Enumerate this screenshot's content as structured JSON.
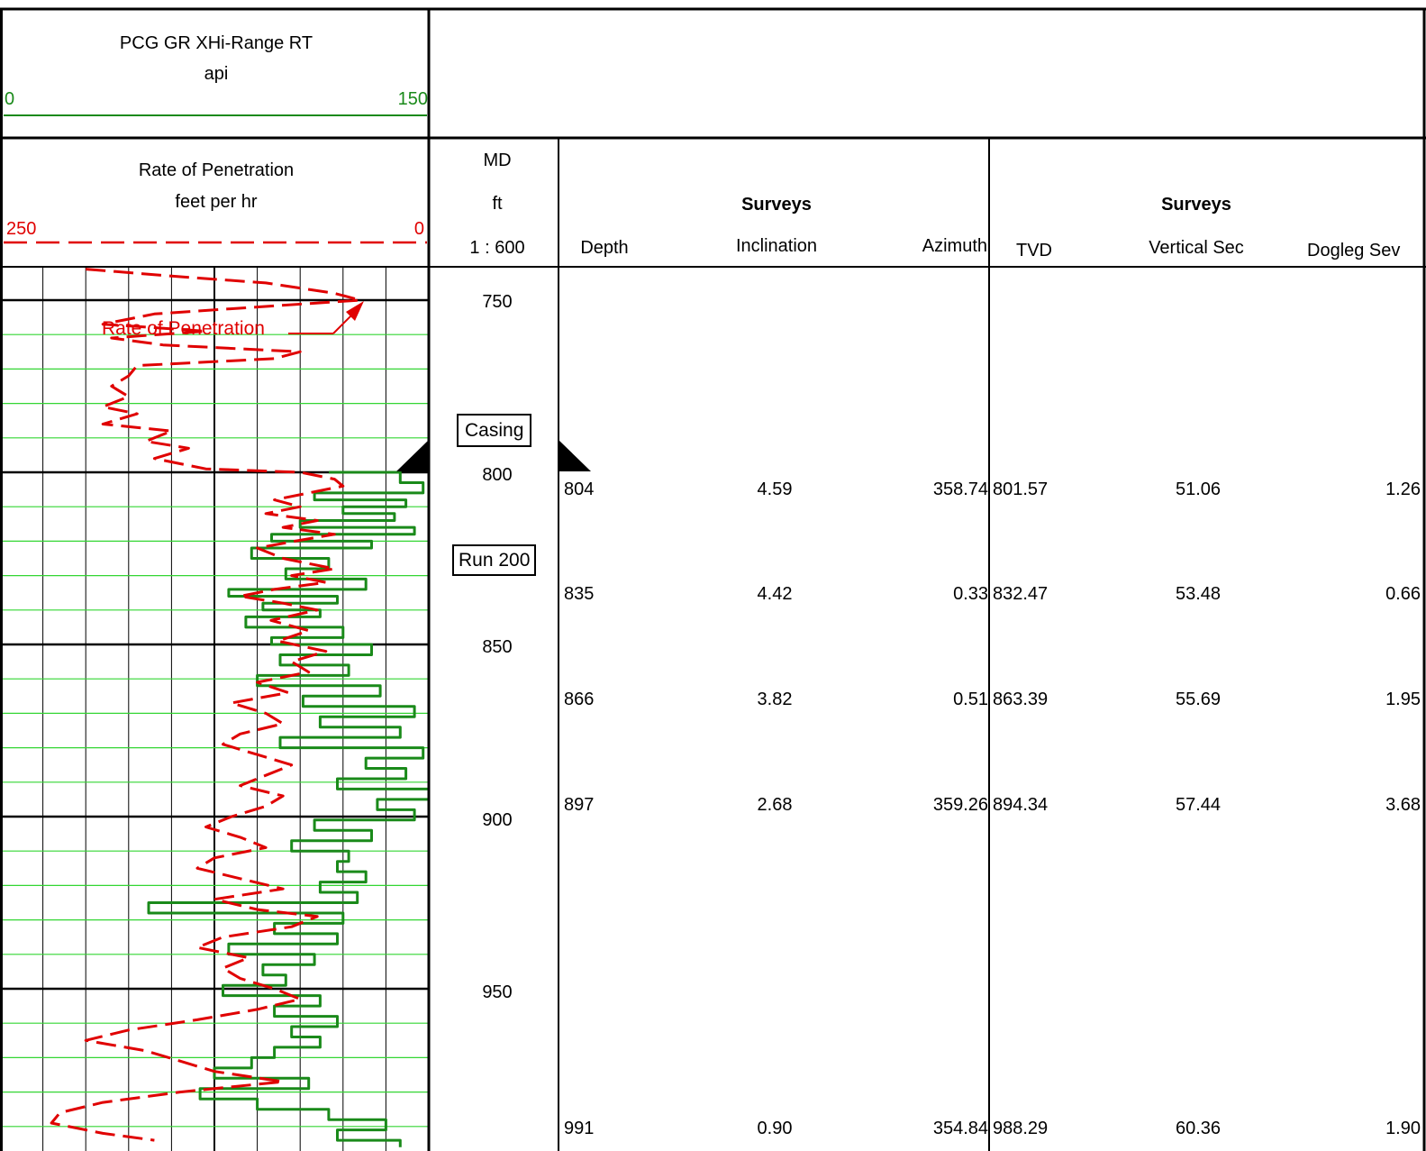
{
  "gr_header": {
    "title": "PCG GR XHi-Range RT",
    "unit": "api",
    "min": "0",
    "max": "150",
    "color": "#1a8a1a"
  },
  "rop_header": {
    "title": "Rate of Penetration",
    "unit": "feet per hr",
    "min": "250",
    "max": "0",
    "color": "#e00000"
  },
  "md_header": {
    "label": "MD",
    "unit": "ft",
    "scale": "1 : 600"
  },
  "surveys_left": {
    "title": "Surveys",
    "columns": [
      "Depth",
      "Inclination",
      "Azimuth"
    ]
  },
  "surveys_right": {
    "title": "Surveys",
    "columns": [
      "TVD",
      "Vertical Sec",
      "Dogleg Sev"
    ]
  },
  "depth_labels": [
    "750",
    "800",
    "850",
    "900",
    "950"
  ],
  "markers": {
    "casing": "Casing",
    "run": "Run 200"
  },
  "curve_label": "Rate of Penetration",
  "survey_rows": [
    {
      "depth": "804",
      "inclination": "4.59",
      "azimuth": "358.74",
      "tvd": "801.57",
      "vertical_sec": "51.06",
      "dogleg_sev": "1.26"
    },
    {
      "depth": "835",
      "inclination": "4.42",
      "azimuth": "0.33",
      "tvd": "832.47",
      "vertical_sec": "53.48",
      "dogleg_sev": "0.66"
    },
    {
      "depth": "866",
      "inclination": "3.82",
      "azimuth": "0.51",
      "tvd": "863.39",
      "vertical_sec": "55.69",
      "dogleg_sev": "1.95"
    },
    {
      "depth": "897",
      "inclination": "2.68",
      "azimuth": "359.26",
      "tvd": "894.34",
      "vertical_sec": "57.44",
      "dogleg_sev": "3.68"
    },
    {
      "depth": "991",
      "inclination": "0.90",
      "azimuth": "354.84",
      "tvd": "988.29",
      "vertical_sec": "60.36",
      "dogleg_sev": "1.90"
    }
  ],
  "chart_data": {
    "type": "line",
    "y_axis": "MD (ft)",
    "ylim": [
      741,
      1000
    ],
    "series": [
      {
        "name": "PCG GR XHi-Range RT",
        "unit": "api",
        "xlim": [
          0,
          150
        ],
        "color": "#1a8a1a",
        "style": "solid",
        "points": [
          [
            800,
            115
          ],
          [
            803,
            140
          ],
          [
            806,
            148
          ],
          [
            808,
            110
          ],
          [
            810,
            142
          ],
          [
            812,
            120
          ],
          [
            814,
            138
          ],
          [
            816,
            105
          ],
          [
            818,
            145
          ],
          [
            820,
            95
          ],
          [
            822,
            130
          ],
          [
            825,
            88
          ],
          [
            828,
            115
          ],
          [
            831,
            100
          ],
          [
            834,
            128
          ],
          [
            836,
            80
          ],
          [
            838,
            118
          ],
          [
            840,
            92
          ],
          [
            842,
            112
          ],
          [
            845,
            86
          ],
          [
            848,
            120
          ],
          [
            850,
            95
          ],
          [
            853,
            130
          ],
          [
            856,
            98
          ],
          [
            859,
            122
          ],
          [
            862,
            90
          ],
          [
            865,
            133
          ],
          [
            868,
            106
          ],
          [
            871,
            145
          ],
          [
            874,
            112
          ],
          [
            877,
            140
          ],
          [
            880,
            98
          ],
          [
            883,
            148
          ],
          [
            886,
            128
          ],
          [
            889,
            142
          ],
          [
            892,
            118
          ],
          [
            895,
            150
          ],
          [
            898,
            132
          ],
          [
            901,
            145
          ],
          [
            904,
            110
          ],
          [
            907,
            130
          ],
          [
            910,
            102
          ],
          [
            913,
            122
          ],
          [
            916,
            118
          ],
          [
            919,
            128
          ],
          [
            922,
            112
          ],
          [
            925,
            125
          ],
          [
            928,
            52
          ],
          [
            931,
            120
          ],
          [
            934,
            96
          ],
          [
            937,
            118
          ],
          [
            940,
            80
          ],
          [
            943,
            110
          ],
          [
            946,
            92
          ],
          [
            949,
            100
          ],
          [
            952,
            78
          ],
          [
            955,
            112
          ],
          [
            958,
            96
          ],
          [
            961,
            118
          ],
          [
            964,
            102
          ],
          [
            967,
            112
          ],
          [
            970,
            96
          ],
          [
            973,
            88
          ],
          [
            976,
            75
          ],
          [
            979,
            108
          ],
          [
            982,
            70
          ],
          [
            985,
            90
          ],
          [
            988,
            115
          ],
          [
            991,
            135
          ],
          [
            994,
            118
          ],
          [
            996,
            140
          ]
        ]
      },
      {
        "name": "Rate of Penetration",
        "unit": "feet per hr",
        "xlim": [
          250,
          0
        ],
        "color": "#e00000",
        "style": "dashed",
        "points": [
          [
            741,
            200
          ],
          [
            743,
            150
          ],
          [
            745,
            95
          ],
          [
            748,
            55
          ],
          [
            750,
            40
          ],
          [
            752,
            100
          ],
          [
            754,
            160
          ],
          [
            757,
            190
          ],
          [
            759,
            130
          ],
          [
            761,
            185
          ],
          [
            763,
            155
          ],
          [
            765,
            75
          ],
          [
            767,
            90
          ],
          [
            769,
            170
          ],
          [
            772,
            175
          ],
          [
            775,
            185
          ],
          [
            778,
            175
          ],
          [
            781,
            190
          ],
          [
            783,
            170
          ],
          [
            786,
            190
          ],
          [
            788,
            150
          ],
          [
            791,
            165
          ],
          [
            793,
            140
          ],
          [
            796,
            160
          ],
          [
            799,
            130
          ],
          [
            800,
            75
          ],
          [
            802,
            55
          ],
          [
            804,
            50
          ],
          [
            806,
            70
          ],
          [
            808,
            90
          ],
          [
            810,
            75
          ],
          [
            812,
            95
          ],
          [
            814,
            65
          ],
          [
            816,
            85
          ],
          [
            818,
            55
          ],
          [
            820,
            78
          ],
          [
            822,
            100
          ],
          [
            825,
            85
          ],
          [
            828,
            55
          ],
          [
            830,
            80
          ],
          [
            832,
            60
          ],
          [
            834,
            90
          ],
          [
            836,
            110
          ],
          [
            838,
            85
          ],
          [
            840,
            65
          ],
          [
            843,
            92
          ],
          [
            846,
            70
          ],
          [
            849,
            88
          ],
          [
            852,
            60
          ],
          [
            855,
            80
          ],
          [
            858,
            70
          ],
          [
            861,
            100
          ],
          [
            864,
            82
          ],
          [
            867,
            115
          ],
          [
            870,
            95
          ],
          [
            873,
            85
          ],
          [
            876,
            110
          ],
          [
            879,
            120
          ],
          [
            882,
            100
          ],
          [
            885,
            80
          ],
          [
            888,
            95
          ],
          [
            891,
            110
          ],
          [
            894,
            85
          ],
          [
            897,
            95
          ],
          [
            900,
            115
          ],
          [
            903,
            130
          ],
          [
            906,
            110
          ],
          [
            909,
            95
          ],
          [
            912,
            125
          ],
          [
            915,
            135
          ],
          [
            918,
            110
          ],
          [
            921,
            85
          ],
          [
            924,
            125
          ],
          [
            927,
            100
          ],
          [
            929,
            65
          ],
          [
            932,
            80
          ],
          [
            935,
            120
          ],
          [
            938,
            135
          ],
          [
            941,
            105
          ],
          [
            944,
            120
          ],
          [
            947,
            110
          ],
          [
            950,
            90
          ],
          [
            953,
            75
          ],
          [
            956,
            100
          ],
          [
            959,
            135
          ],
          [
            962,
            175
          ],
          [
            965,
            200
          ],
          [
            968,
            165
          ],
          [
            971,
            145
          ],
          [
            974,
            125
          ],
          [
            977,
            85
          ],
          [
            980,
            145
          ],
          [
            983,
            190
          ],
          [
            986,
            215
          ],
          [
            989,
            220
          ],
          [
            992,
            190
          ],
          [
            994,
            160
          ]
        ]
      }
    ]
  }
}
